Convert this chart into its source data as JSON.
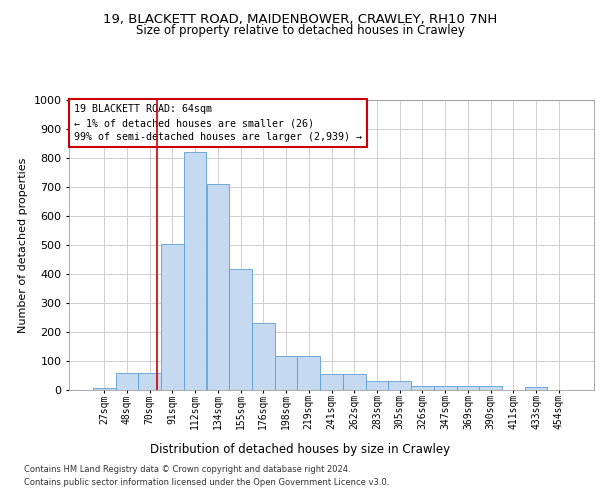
{
  "title1": "19, BLACKETT ROAD, MAIDENBOWER, CRAWLEY, RH10 7NH",
  "title2": "Size of property relative to detached houses in Crawley",
  "xlabel": "Distribution of detached houses by size in Crawley",
  "ylabel": "Number of detached properties",
  "categories": [
    "27sqm",
    "48sqm",
    "70sqm",
    "91sqm",
    "112sqm",
    "134sqm",
    "155sqm",
    "176sqm",
    "198sqm",
    "219sqm",
    "241sqm",
    "262sqm",
    "283sqm",
    "305sqm",
    "326sqm",
    "347sqm",
    "369sqm",
    "390sqm",
    "411sqm",
    "433sqm",
    "454sqm"
  ],
  "values": [
    8,
    57,
    57,
    503,
    820,
    710,
    418,
    230,
    117,
    117,
    55,
    55,
    32,
    32,
    15,
    15,
    15,
    13,
    0,
    10,
    0
  ],
  "bar_color": "#c5d9f1",
  "bar_edge_color": "#5a9fd4",
  "annotation_text": "19 BLACKETT ROAD: 64sqm\n← 1% of detached houses are smaller (26)\n99% of semi-detached houses are larger (2,939) →",
  "footnote1": "Contains HM Land Registry data © Crown copyright and database right 2024.",
  "footnote2": "Contains public sector information licensed under the Open Government Licence v3.0.",
  "ylim": [
    0,
    1000
  ],
  "yticks": [
    0,
    100,
    200,
    300,
    400,
    500,
    600,
    700,
    800,
    900,
    1000
  ],
  "grid_color": "#d0d0d0",
  "vline_color": "#cc0000",
  "vline_x": 2.3
}
